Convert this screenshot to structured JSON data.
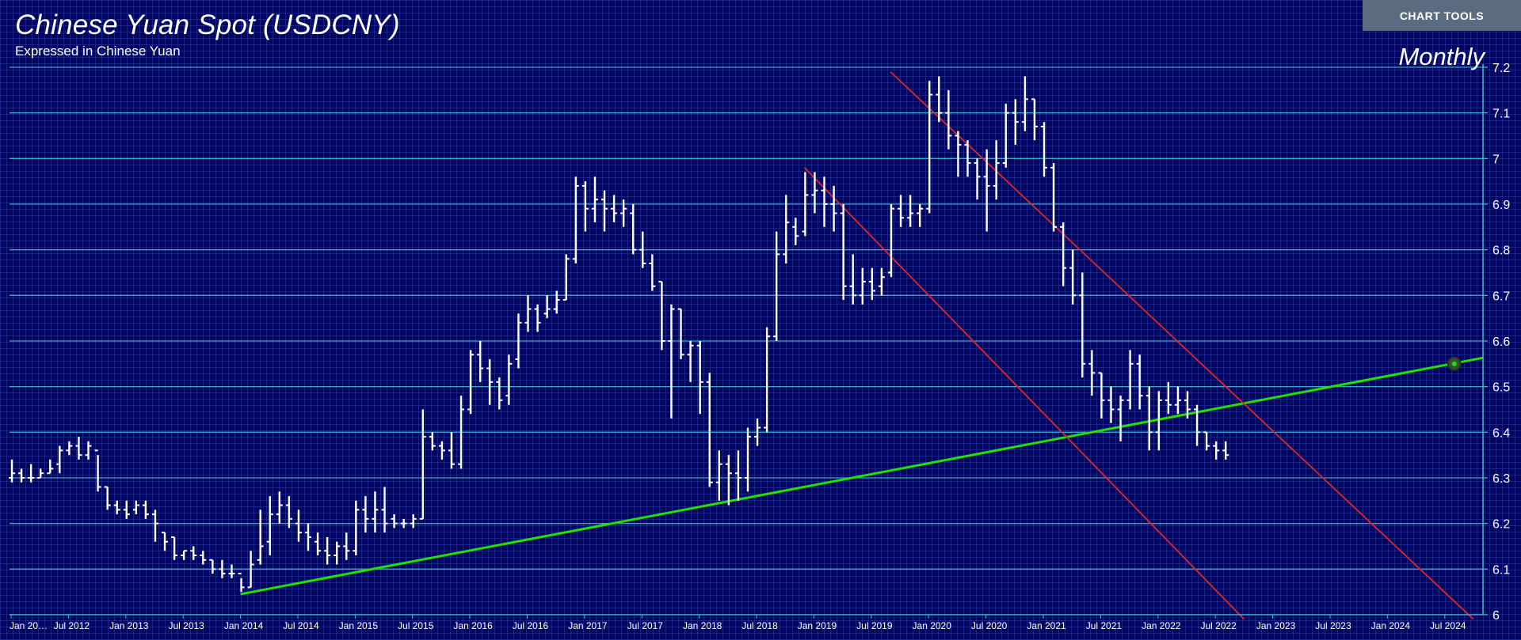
{
  "title": "Chinese Yuan Spot (USDCNY)",
  "subtitle": "Expressed in Chinese Yuan",
  "period": "Monthly",
  "chart_tools_label": "CHART TOOLS",
  "colors": {
    "background": "#02055e",
    "gridline": "#3fb7c9",
    "bars": "#ffffff",
    "trend_support": "#22e000",
    "channel": "#e0242a"
  },
  "chart_data": {
    "type": "ohlc",
    "ylim": [
      6.0,
      7.2
    ],
    "yticks": [
      "7.2",
      "7.1",
      "7",
      "6.9",
      "6.8",
      "6.7",
      "6.6",
      "6.5",
      "6.4",
      "6.3",
      "6.2",
      "6.1",
      "6"
    ],
    "xlabels": [
      "Jan 20…",
      "Jul 2012",
      "Jan 2013",
      "Jul 2013",
      "Jan 2014",
      "Jul 2014",
      "Jan 2015",
      "Jul 2015",
      "Jan 2016",
      "Jul 2016",
      "Jan 2017",
      "Jul 2017",
      "Jan 2018",
      "Jul 2018",
      "Jan 2019",
      "Jul 2019",
      "Jan 2020",
      "Jul 2020",
      "Jan 2021",
      "Jul 2021",
      "Jan 2022",
      "Jul 2022",
      "Jan 2023",
      "Jul 2023",
      "Jan 2024",
      "Jul 2024"
    ],
    "start": "2012-01",
    "bars": [
      [
        6.3,
        6.34,
        6.29,
        6.31
      ],
      [
        6.31,
        6.32,
        6.29,
        6.3
      ],
      [
        6.3,
        6.33,
        6.29,
        6.3
      ],
      [
        6.3,
        6.32,
        6.3,
        6.31
      ],
      [
        6.31,
        6.34,
        6.31,
        6.32
      ],
      [
        6.33,
        6.37,
        6.31,
        6.36
      ],
      [
        6.36,
        6.38,
        6.35,
        6.37
      ],
      [
        6.37,
        6.39,
        6.34,
        6.35
      ],
      [
        6.35,
        6.38,
        6.34,
        6.37
      ],
      [
        6.36,
        6.35,
        6.27,
        6.28
      ],
      [
        6.28,
        6.28,
        6.23,
        6.24
      ],
      [
        6.24,
        6.25,
        6.22,
        6.23
      ],
      [
        6.23,
        6.25,
        6.21,
        6.22
      ],
      [
        6.23,
        6.25,
        6.22,
        6.24
      ],
      [
        6.24,
        6.25,
        6.21,
        6.22
      ],
      [
        6.22,
        6.23,
        6.16,
        6.2
      ],
      [
        6.18,
        6.18,
        6.14,
        6.16
      ],
      [
        6.17,
        6.17,
        6.12,
        6.13
      ],
      [
        6.13,
        6.14,
        6.12,
        6.14
      ],
      [
        6.14,
        6.15,
        6.12,
        6.13
      ],
      [
        6.13,
        6.14,
        6.11,
        6.12
      ],
      [
        6.12,
        6.12,
        6.09,
        6.1
      ],
      [
        6.1,
        6.12,
        6.08,
        6.09
      ],
      [
        6.09,
        6.11,
        6.08,
        6.09
      ],
      [
        6.09,
        6.08,
        6.05,
        6.06
      ],
      [
        6.06,
        6.14,
        6.06,
        6.11
      ],
      [
        6.12,
        6.23,
        6.11,
        6.15
      ],
      [
        6.16,
        6.26,
        6.13,
        6.22
      ],
      [
        6.22,
        6.27,
        6.2,
        6.24
      ],
      [
        6.24,
        6.26,
        6.19,
        6.21
      ],
      [
        6.2,
        6.23,
        6.16,
        6.18
      ],
      [
        6.18,
        6.2,
        6.14,
        6.17
      ],
      [
        6.16,
        6.18,
        6.13,
        6.14
      ],
      [
        6.14,
        6.17,
        6.11,
        6.13
      ],
      [
        6.13,
        6.16,
        6.11,
        6.15
      ],
      [
        6.15,
        6.18,
        6.12,
        6.14
      ],
      [
        6.14,
        6.25,
        6.13,
        6.23
      ],
      [
        6.23,
        6.26,
        6.18,
        6.21
      ],
      [
        6.21,
        6.27,
        6.18,
        6.23
      ],
      [
        6.23,
        6.28,
        6.18,
        6.2
      ],
      [
        6.21,
        6.22,
        6.19,
        6.2
      ],
      [
        6.2,
        6.21,
        6.19,
        6.2
      ],
      [
        6.2,
        6.22,
        6.19,
        6.21
      ],
      [
        6.21,
        6.45,
        6.21,
        6.39
      ],
      [
        6.39,
        6.4,
        6.36,
        6.37
      ],
      [
        6.37,
        6.38,
        6.34,
        6.36
      ],
      [
        6.36,
        6.4,
        6.32,
        6.33
      ],
      [
        6.33,
        6.48,
        6.32,
        6.45
      ],
      [
        6.45,
        6.58,
        6.44,
        6.57
      ],
      [
        6.57,
        6.6,
        6.51,
        6.54
      ],
      [
        6.54,
        6.56,
        6.46,
        6.51
      ],
      [
        6.51,
        6.52,
        6.45,
        6.47
      ],
      [
        6.48,
        6.57,
        6.46,
        6.55
      ],
      [
        6.56,
        6.66,
        6.54,
        6.64
      ],
      [
        6.64,
        6.7,
        6.62,
        6.67
      ],
      [
        6.67,
        6.68,
        6.62,
        6.64
      ],
      [
        6.66,
        6.7,
        6.65,
        6.67
      ],
      [
        6.67,
        6.71,
        6.66,
        6.69
      ],
      [
        6.69,
        6.79,
        6.69,
        6.78
      ],
      [
        6.78,
        6.96,
        6.77,
        6.94
      ],
      [
        6.94,
        6.95,
        6.84,
        6.89
      ],
      [
        6.89,
        6.96,
        6.86,
        6.91
      ],
      [
        6.91,
        6.93,
        6.84,
        6.89
      ],
      [
        6.89,
        6.92,
        6.86,
        6.88
      ],
      [
        6.88,
        6.91,
        6.85,
        6.89
      ],
      [
        6.88,
        6.9,
        6.79,
        6.8
      ],
      [
        6.8,
        6.84,
        6.76,
        6.77
      ],
      [
        6.77,
        6.79,
        6.71,
        6.72
      ],
      [
        6.73,
        6.73,
        6.58,
        6.6
      ],
      [
        6.6,
        6.68,
        6.43,
        6.67
      ],
      [
        6.67,
        6.67,
        6.56,
        6.57
      ],
      [
        6.57,
        6.6,
        6.51,
        6.59
      ],
      [
        6.59,
        6.6,
        6.44,
        6.51
      ],
      [
        6.51,
        6.53,
        6.28,
        6.29
      ],
      [
        6.29,
        6.36,
        6.25,
        6.33
      ],
      [
        6.33,
        6.35,
        6.24,
        6.31
      ],
      [
        6.31,
        6.36,
        6.25,
        6.3
      ],
      [
        6.3,
        6.41,
        6.27,
        6.39
      ],
      [
        6.39,
        6.43,
        6.37,
        6.41
      ],
      [
        6.41,
        6.63,
        6.4,
        6.61
      ],
      [
        6.61,
        6.84,
        6.6,
        6.79
      ],
      [
        6.79,
        6.92,
        6.77,
        6.86
      ],
      [
        6.85,
        6.87,
        6.81,
        6.83
      ],
      [
        6.84,
        6.97,
        6.83,
        6.92
      ],
      [
        6.92,
        6.97,
        6.88,
        6.93
      ],
      [
        6.93,
        6.96,
        6.85,
        6.9
      ],
      [
        6.9,
        6.94,
        6.84,
        6.88
      ],
      [
        6.88,
        6.9,
        6.69,
        6.72
      ],
      [
        6.72,
        6.79,
        6.68,
        6.7
      ],
      [
        6.7,
        6.76,
        6.68,
        6.73
      ],
      [
        6.73,
        6.76,
        6.69,
        6.71
      ],
      [
        6.72,
        6.76,
        6.7,
        6.74
      ],
      [
        6.75,
        6.9,
        6.74,
        6.89
      ],
      [
        6.89,
        6.92,
        6.85,
        6.87
      ],
      [
        6.87,
        6.92,
        6.85,
        6.88
      ],
      [
        6.88,
        6.9,
        6.85,
        6.89
      ],
      [
        6.89,
        7.17,
        6.88,
        7.14
      ],
      [
        7.14,
        7.18,
        7.08,
        7.1
      ],
      [
        7.1,
        7.15,
        7.02,
        7.05
      ],
      [
        7.05,
        7.06,
        6.96,
        7.03
      ],
      [
        7.03,
        7.04,
        6.96,
        6.99
      ],
      [
        6.99,
        7.0,
        6.91,
        6.96
      ],
      [
        6.96,
        7.02,
        6.84,
        6.94
      ],
      [
        6.94,
        7.04,
        6.91,
        6.99
      ],
      [
        6.99,
        7.12,
        6.98,
        7.1
      ],
      [
        7.1,
        7.13,
        7.03,
        7.08
      ],
      [
        7.08,
        7.18,
        7.06,
        7.13
      ],
      [
        7.13,
        7.13,
        7.04,
        7.07
      ],
      [
        7.07,
        7.08,
        6.96,
        6.98
      ],
      [
        6.98,
        6.99,
        6.84,
        6.85
      ],
      [
        6.85,
        6.86,
        6.72,
        6.76
      ],
      [
        6.76,
        6.8,
        6.68,
        6.7
      ],
      [
        6.7,
        6.75,
        6.52,
        6.55
      ],
      [
        6.55,
        6.58,
        6.48,
        6.53
      ],
      [
        6.53,
        6.53,
        6.43,
        6.47
      ],
      [
        6.47,
        6.5,
        6.42,
        6.45
      ],
      [
        6.45,
        6.48,
        6.38,
        6.47
      ],
      [
        6.47,
        6.58,
        6.45,
        6.55
      ],
      [
        6.55,
        6.57,
        6.45,
        6.48
      ],
      [
        6.48,
        6.5,
        6.36,
        6.4
      ],
      [
        6.4,
        6.49,
        6.36,
        6.47
      ],
      [
        6.47,
        6.51,
        6.44,
        6.46
      ],
      [
        6.46,
        6.5,
        6.44,
        6.47
      ],
      [
        6.47,
        6.49,
        6.43,
        6.45
      ],
      [
        6.45,
        6.46,
        6.37,
        6.4
      ],
      [
        6.4,
        6.4,
        6.36,
        6.37
      ],
      [
        6.37,
        6.38,
        6.34,
        6.36
      ],
      [
        6.36,
        6.38,
        6.34,
        6.35
      ]
    ],
    "trendlines": [
      {
        "name": "support",
        "color": "#22e000",
        "from": [
          "2014-01",
          6.045
        ],
        "to": [
          "2024-11",
          6.563
        ]
      },
      {
        "name": "channel-upper",
        "color": "#e0242a",
        "from": [
          "2019-09",
          7.19
        ],
        "to": [
          "2024-10",
          5.99
        ]
      },
      {
        "name": "channel-lower",
        "color": "#e0242a",
        "from": [
          "2018-12",
          6.98
        ],
        "to": [
          "2022-10",
          5.99
        ]
      }
    ],
    "marker": {
      "date": "2024-08",
      "value": 6.55
    }
  }
}
